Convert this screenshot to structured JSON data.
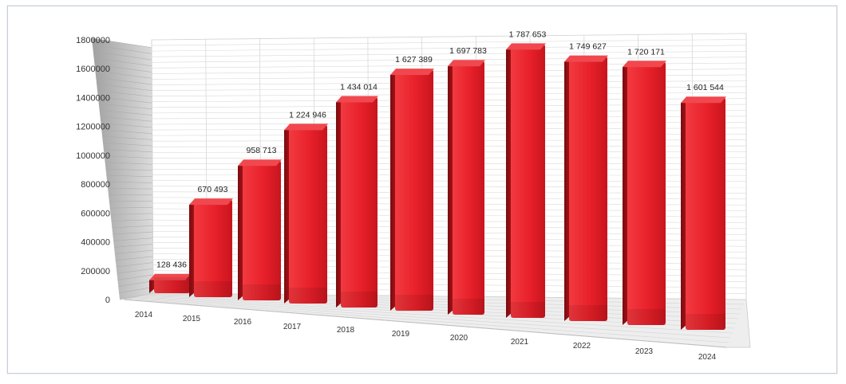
{
  "chart_data": {
    "type": "bar",
    "title": "",
    "xlabel": "",
    "ylabel": "",
    "categories": [
      "2014",
      "2015",
      "2016",
      "2017",
      "2018",
      "2019",
      "2020",
      "2021",
      "2022",
      "2023",
      "2024"
    ],
    "values": [
      128436,
      670493,
      958713,
      1224946,
      1434014,
      1627389,
      1697783,
      1787653,
      1749627,
      1720171,
      1601544
    ],
    "data_labels": [
      "128 436",
      "670 493",
      "958 713",
      "1 224 946",
      "1 434 014",
      "1 627 389",
      "1 697 783",
      "1 787 653",
      "1 749 627",
      "1 720 171",
      "1 601 544"
    ],
    "y_ticks": [
      "0",
      "200000",
      "400000",
      "600000",
      "800000",
      "1000000",
      "1200000",
      "1400000",
      "1600000",
      "1800000"
    ],
    "ylim": [
      0,
      1800000
    ],
    "grid": true,
    "legend": "none",
    "style": "3d-perspective",
    "bar_color": "#e8202a"
  }
}
